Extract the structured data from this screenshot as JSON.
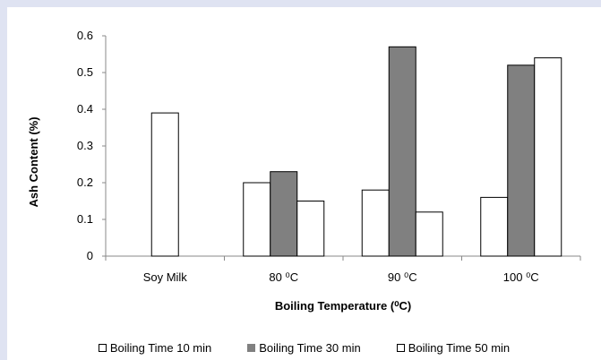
{
  "chart_data": {
    "type": "bar",
    "categories": [
      "Soy Milk",
      "80 ⁰C",
      "90 ⁰C",
      "100 ⁰C"
    ],
    "series": [
      {
        "name": "Boiling Time 10 min",
        "values": [
          0.39,
          0.2,
          0.18,
          0.16
        ],
        "fill": "#ffffff"
      },
      {
        "name": "Boiling Time 30 min",
        "values": [
          null,
          0.23,
          0.57,
          0.52
        ],
        "fill": "#808080"
      },
      {
        "name": "Boiling Time 50 min",
        "values": [
          null,
          0.15,
          0.12,
          0.54
        ],
        "fill": "#ffffff"
      }
    ],
    "ylabel": "Ash Content (%)",
    "xlabel": "Boiling Temperature  (⁰C)",
    "ylim": [
      0,
      0.6
    ],
    "yticks": [
      "0",
      "0.1",
      "0.2",
      "0.3",
      "0.4",
      "0.5",
      "0.6"
    ],
    "grid": false,
    "legend_position": "bottom"
  },
  "colors": {
    "background": "#dfe3f2",
    "panel": "#ffffff",
    "filled_bar": "#808080",
    "outline": "#000000"
  }
}
